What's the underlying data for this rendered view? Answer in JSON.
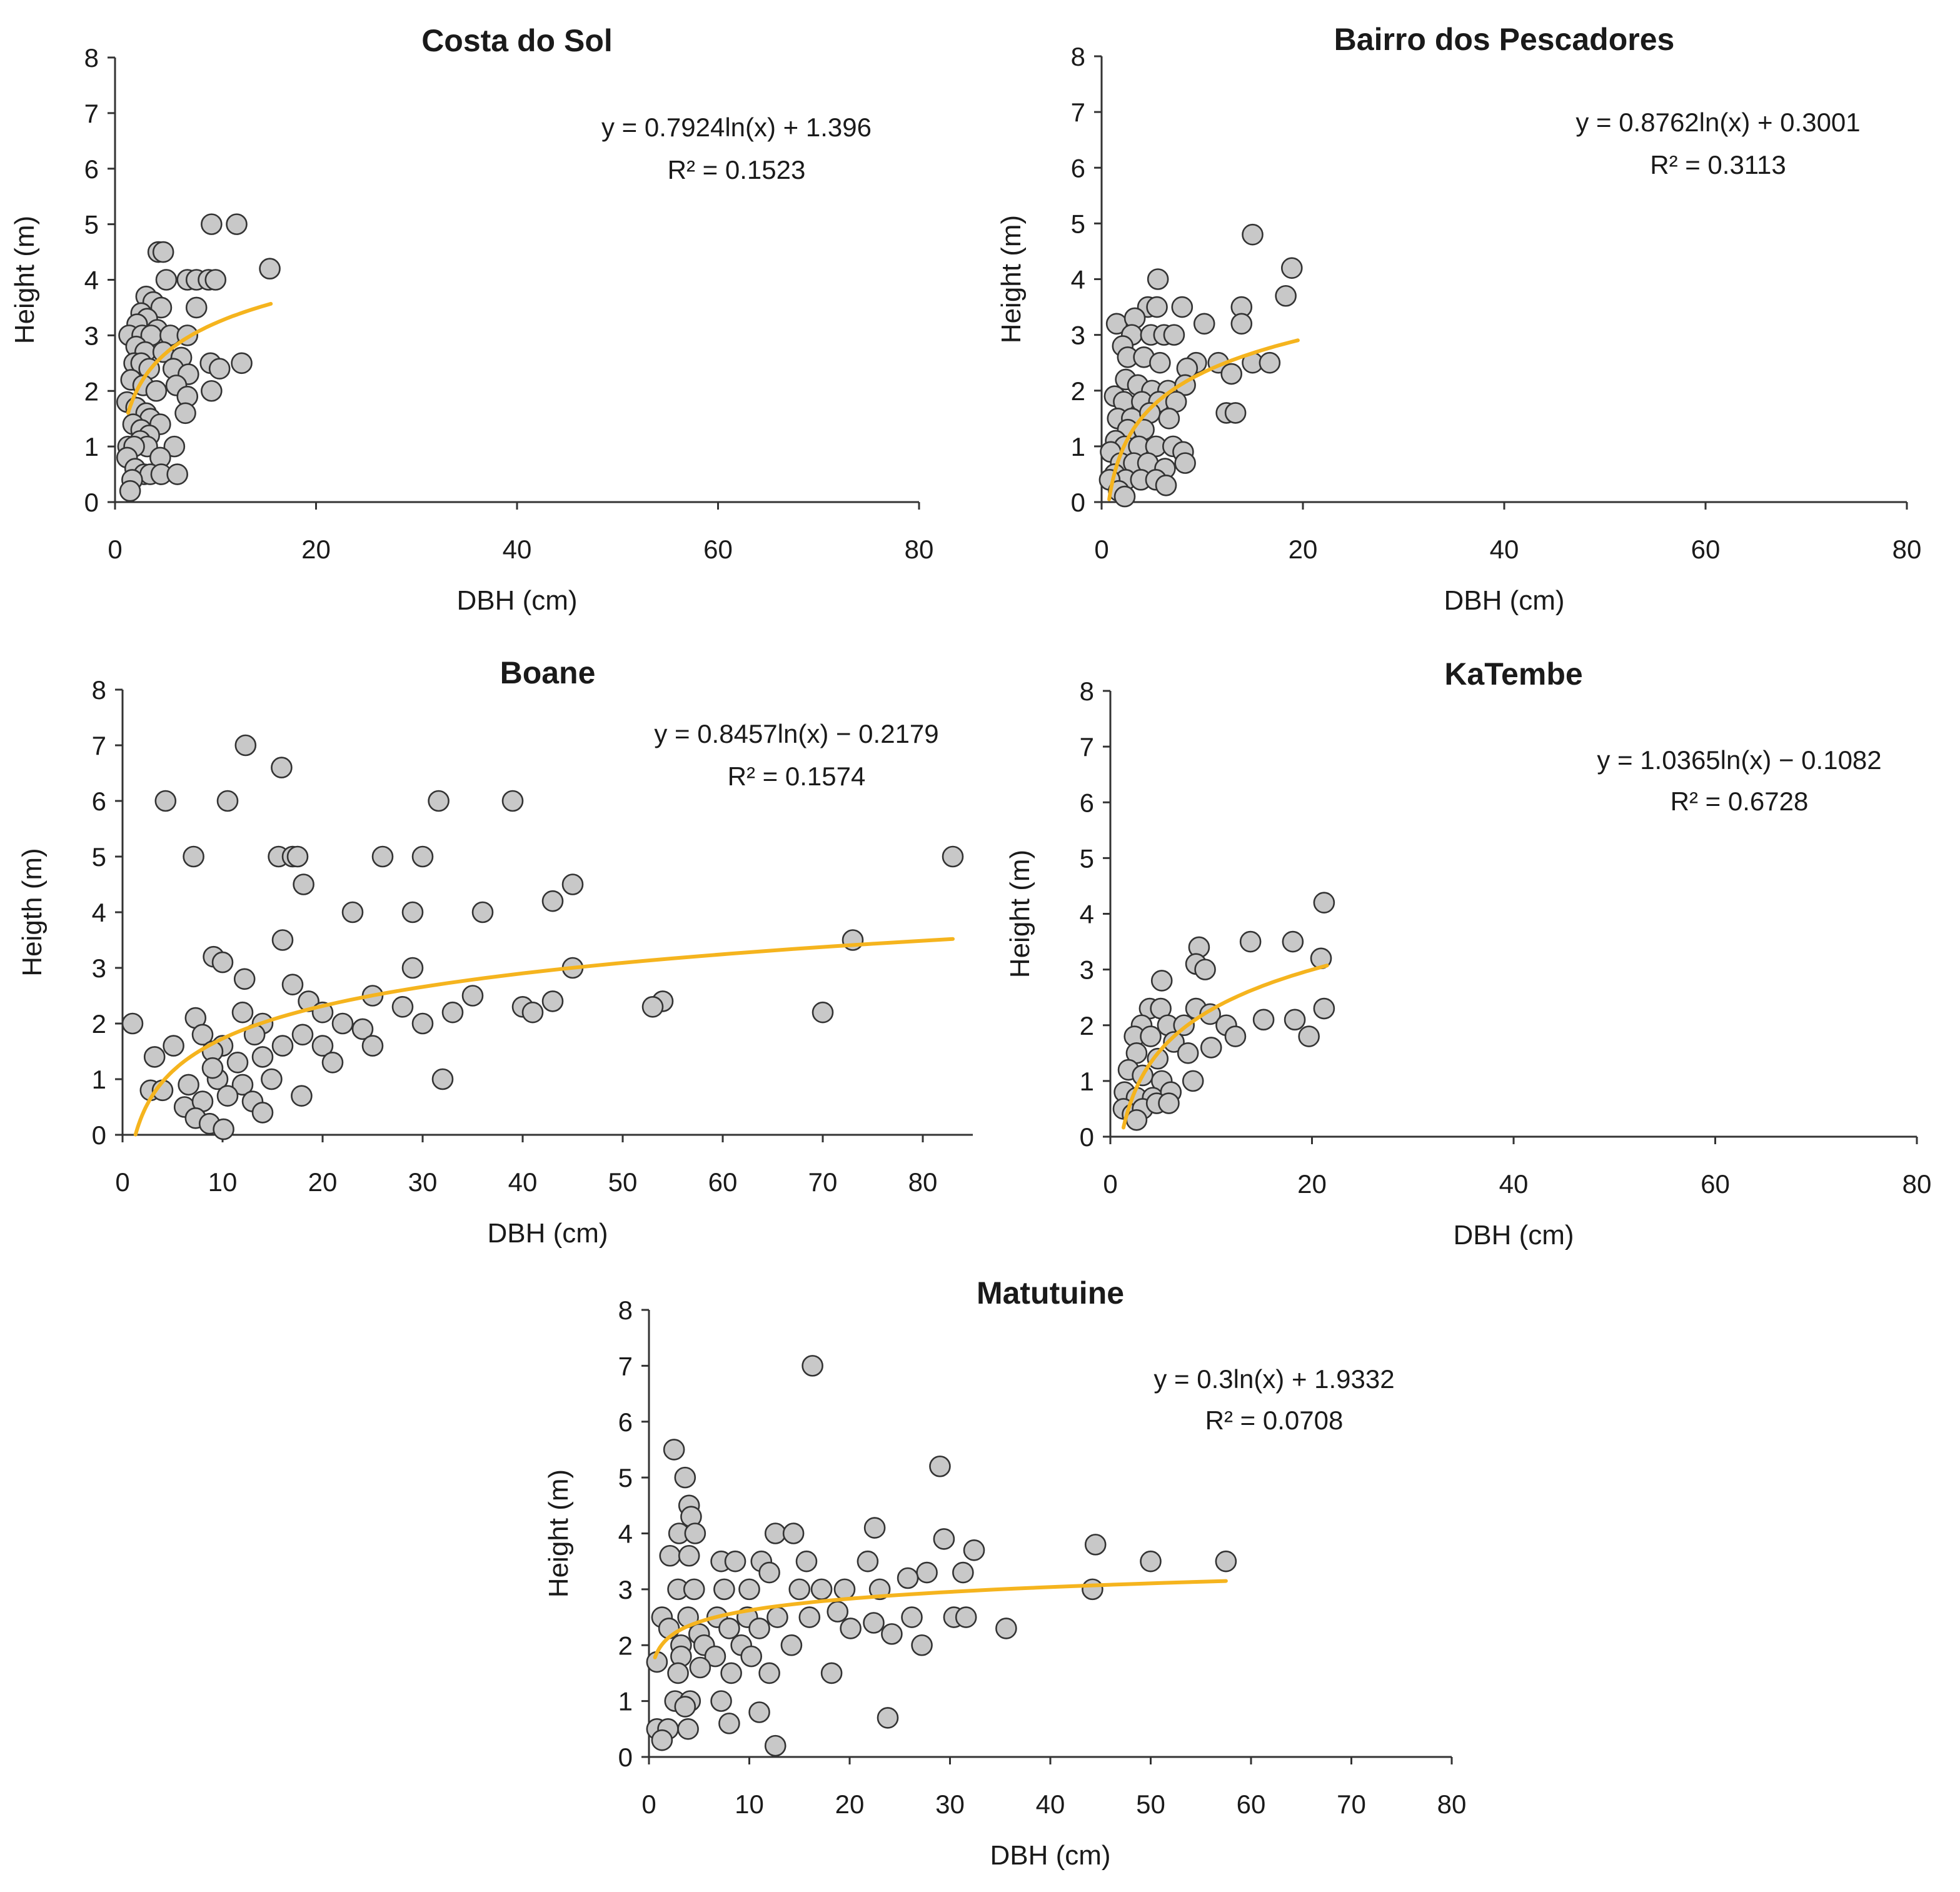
{
  "figure": {
    "marker_fill": "#c8c8c8",
    "marker_edge": "#333333",
    "trend_color": "#f5b41e"
  },
  "chart_data": [
    {
      "type": "scatter",
      "title": "Costa do Sol",
      "xlabel": "DBH (cm)",
      "ylabel": "Height (m)",
      "xlim": [
        0,
        80
      ],
      "ylim": [
        0,
        8
      ],
      "xticks": [
        "0",
        "20",
        "40",
        "60",
        "80"
      ],
      "yticks": [
        "0",
        "1",
        "2",
        "3",
        "4",
        "5",
        "6",
        "7",
        "8"
      ],
      "equation": "y = 0.7924ln(x) + 1.396",
      "r2_label": "R² = 0.1523",
      "trend": {
        "a": 0.7924,
        "b": 1.396,
        "xmin": 1.3,
        "xmax": 15.5
      },
      "points": [
        [
          9.6,
          5
        ],
        [
          12.1,
          5
        ],
        [
          15.4,
          4.2
        ],
        [
          4.3,
          4.5
        ],
        [
          4.8,
          4.5
        ],
        [
          7.2,
          4
        ],
        [
          8.1,
          4
        ],
        [
          9.3,
          4
        ],
        [
          10,
          4
        ],
        [
          5.1,
          4
        ],
        [
          3.1,
          3.7
        ],
        [
          3.8,
          3.6
        ],
        [
          4.6,
          3.5
        ],
        [
          8.1,
          3.5
        ],
        [
          2.6,
          3.4
        ],
        [
          3.2,
          3.3
        ],
        [
          2.2,
          3.2
        ],
        [
          4.2,
          3.1
        ],
        [
          1.4,
          3
        ],
        [
          2.7,
          3
        ],
        [
          3.6,
          3
        ],
        [
          5.5,
          3
        ],
        [
          7.2,
          3
        ],
        [
          2.1,
          2.8
        ],
        [
          3,
          2.7
        ],
        [
          4.8,
          2.7
        ],
        [
          6.6,
          2.6
        ],
        [
          1.9,
          2.5
        ],
        [
          2.6,
          2.5
        ],
        [
          3.4,
          2.4
        ],
        [
          9.5,
          2.5
        ],
        [
          10.4,
          2.4
        ],
        [
          12.6,
          2.5
        ],
        [
          5.8,
          2.4
        ],
        [
          7.3,
          2.3
        ],
        [
          1.6,
          2.2
        ],
        [
          2.8,
          2.1
        ],
        [
          4.1,
          2
        ],
        [
          9.6,
          2
        ],
        [
          6.1,
          2.1
        ],
        [
          7.2,
          1.9
        ],
        [
          1.2,
          1.8
        ],
        [
          2.1,
          1.7
        ],
        [
          3.1,
          1.6
        ],
        [
          3.5,
          1.5
        ],
        [
          4.5,
          1.4
        ],
        [
          7,
          1.6
        ],
        [
          1.8,
          1.4
        ],
        [
          2.6,
          1.3
        ],
        [
          3.4,
          1.2
        ],
        [
          2.5,
          1.1
        ],
        [
          3.2,
          1
        ],
        [
          1.3,
          1
        ],
        [
          1.9,
          1
        ],
        [
          5.9,
          1
        ],
        [
          4.5,
          0.8
        ],
        [
          1.2,
          0.8
        ],
        [
          2,
          0.6
        ],
        [
          2.9,
          0.5
        ],
        [
          3.5,
          0.5
        ],
        [
          4.6,
          0.5
        ],
        [
          6.2,
          0.5
        ],
        [
          1.7,
          0.4
        ],
        [
          1.5,
          0.2
        ]
      ]
    },
    {
      "type": "scatter",
      "title": "Bairro dos Pescadores",
      "xlabel": "DBH (cm)",
      "ylabel": "Height (m)",
      "xlim": [
        0,
        80
      ],
      "ylim": [
        0,
        8
      ],
      "xticks": [
        "0",
        "20",
        "40",
        "60",
        "80"
      ],
      "yticks": [
        "0",
        "1",
        "2",
        "3",
        "4",
        "5",
        "6",
        "7",
        "8"
      ],
      "equation": "y = 0.8762ln(x) + 0.3001",
      "r2_label": "R² = 0.3113",
      "trend": {
        "a": 0.8762,
        "b": 0.3001,
        "xmin": 0.75,
        "xmax": 19.5
      },
      "points": [
        [
          15,
          4.8
        ],
        [
          18.9,
          4.2
        ],
        [
          18.3,
          3.7
        ],
        [
          5.6,
          4
        ],
        [
          4.6,
          3.5
        ],
        [
          5.5,
          3.5
        ],
        [
          8,
          3.5
        ],
        [
          13.9,
          3.5
        ],
        [
          1.5,
          3.2
        ],
        [
          3.3,
          3.3
        ],
        [
          10.2,
          3.2
        ],
        [
          13.9,
          3.2
        ],
        [
          3,
          3
        ],
        [
          4.9,
          3
        ],
        [
          6.2,
          3
        ],
        [
          7.2,
          3
        ],
        [
          2.1,
          2.8
        ],
        [
          2.6,
          2.6
        ],
        [
          4.2,
          2.6
        ],
        [
          5.8,
          2.5
        ],
        [
          9.4,
          2.5
        ],
        [
          11.6,
          2.5
        ],
        [
          15,
          2.5
        ],
        [
          16.7,
          2.5
        ],
        [
          8.5,
          2.4
        ],
        [
          12.9,
          2.3
        ],
        [
          2.4,
          2.2
        ],
        [
          3.6,
          2.1
        ],
        [
          5,
          2
        ],
        [
          6.6,
          2
        ],
        [
          8.3,
          2.1
        ],
        [
          1.3,
          1.9
        ],
        [
          2.2,
          1.8
        ],
        [
          4,
          1.8
        ],
        [
          5.7,
          1.8
        ],
        [
          7.4,
          1.8
        ],
        [
          1.6,
          1.5
        ],
        [
          3,
          1.5
        ],
        [
          4.8,
          1.6
        ],
        [
          6.7,
          1.5
        ],
        [
          12.4,
          1.6
        ],
        [
          13.3,
          1.6
        ],
        [
          2.6,
          1.3
        ],
        [
          4.2,
          1.3
        ],
        [
          1.4,
          1.1
        ],
        [
          2.3,
          1
        ],
        [
          3.7,
          1
        ],
        [
          5.4,
          1
        ],
        [
          7.1,
          1
        ],
        [
          8.1,
          0.9
        ],
        [
          0.9,
          0.9
        ],
        [
          1.9,
          0.7
        ],
        [
          3.2,
          0.7
        ],
        [
          4.6,
          0.7
        ],
        [
          6.3,
          0.6
        ],
        [
          8.3,
          0.7
        ],
        [
          1.3,
          0.5
        ],
        [
          2.4,
          0.4
        ],
        [
          3.9,
          0.4
        ],
        [
          5.4,
          0.4
        ],
        [
          6.4,
          0.3
        ],
        [
          0.8,
          0.4
        ],
        [
          1.7,
          0.2
        ],
        [
          2.3,
          0.1
        ]
      ]
    },
    {
      "type": "scatter",
      "title": "Boane",
      "xlabel": "DBH (cm)",
      "ylabel": "Heigth (m)",
      "xlim": [
        0,
        85
      ],
      "ylim": [
        0,
        8
      ],
      "xticks": [
        "0",
        "10",
        "20",
        "30",
        "40",
        "50",
        "60",
        "70",
        "80"
      ],
      "yticks": [
        "0",
        "1",
        "2",
        "3",
        "4",
        "5",
        "6",
        "7",
        "8"
      ],
      "equation": "y = 0.8457ln(x) − 0.2179",
      "r2_label": "R² = 0.1574",
      "trend": {
        "a": 0.8457,
        "b": -0.2179,
        "xmin": 1.3,
        "xmax": 83
      },
      "points": [
        [
          12.3,
          7
        ],
        [
          15.9,
          6.6
        ],
        [
          4.3,
          6
        ],
        [
          10.5,
          6
        ],
        [
          31.6,
          6
        ],
        [
          39,
          6
        ],
        [
          7.1,
          5
        ],
        [
          15.6,
          5
        ],
        [
          17,
          5
        ],
        [
          17.5,
          5
        ],
        [
          26,
          5
        ],
        [
          30,
          5
        ],
        [
          83,
          5
        ],
        [
          18.1,
          4.5
        ],
        [
          45,
          4.5
        ],
        [
          43,
          4.2
        ],
        [
          23,
          4
        ],
        [
          29,
          4
        ],
        [
          36,
          4
        ],
        [
          16,
          3.5
        ],
        [
          73,
          3.5
        ],
        [
          9.1,
          3.2
        ],
        [
          10,
          3.1
        ],
        [
          29,
          3
        ],
        [
          45,
          3
        ],
        [
          12.2,
          2.8
        ],
        [
          17,
          2.7
        ],
        [
          25,
          2.5
        ],
        [
          35,
          2.5
        ],
        [
          18.6,
          2.4
        ],
        [
          43,
          2.4
        ],
        [
          54,
          2.4
        ],
        [
          28,
          2.3
        ],
        [
          40,
          2.3
        ],
        [
          53,
          2.3
        ],
        [
          70,
          2.2
        ],
        [
          41,
          2.2
        ],
        [
          7.3,
          2.1
        ],
        [
          12,
          2.2
        ],
        [
          20,
          2.2
        ],
        [
          1,
          2
        ],
        [
          14,
          2
        ],
        [
          22,
          2
        ],
        [
          30,
          2
        ],
        [
          8,
          1.8
        ],
        [
          13.2,
          1.8
        ],
        [
          18,
          1.8
        ],
        [
          24,
          1.9
        ],
        [
          33,
          2.2
        ],
        [
          5.1,
          1.6
        ],
        [
          10,
          1.6
        ],
        [
          16,
          1.6
        ],
        [
          20,
          1.6
        ],
        [
          25,
          1.6
        ],
        [
          3.2,
          1.4
        ],
        [
          9,
          1.5
        ],
        [
          14,
          1.4
        ],
        [
          21,
          1.3
        ],
        [
          2.8,
          0.8
        ],
        [
          6.6,
          0.9
        ],
        [
          9.5,
          1
        ],
        [
          12,
          0.9
        ],
        [
          14.9,
          1
        ],
        [
          32,
          1
        ],
        [
          4,
          0.8
        ],
        [
          6.2,
          0.5
        ],
        [
          8,
          0.6
        ],
        [
          10.5,
          0.7
        ],
        [
          13,
          0.6
        ],
        [
          14,
          0.4
        ],
        [
          17.9,
          0.7
        ],
        [
          7.3,
          0.3
        ],
        [
          8.7,
          0.2
        ],
        [
          10.1,
          0.1
        ],
        [
          9,
          1.2
        ],
        [
          11.5,
          1.3
        ]
      ]
    },
    {
      "type": "scatter",
      "title": "KaTembe",
      "xlabel": "DBH (cm)",
      "ylabel": "Height (m)",
      "xlim": [
        0,
        80
      ],
      "ylim": [
        0,
        8
      ],
      "xticks": [
        "0",
        "20",
        "40",
        "60",
        "80"
      ],
      "yticks": [
        "0",
        "1",
        "2",
        "3",
        "4",
        "5",
        "6",
        "7",
        "8"
      ],
      "equation": "y = 1.0365ln(x) − 0.1082",
      "r2_label": "R² = 0.6728",
      "trend": {
        "a": 1.0365,
        "b": -0.1082,
        "xmin": 1.3,
        "xmax": 21.5
      },
      "points": [
        [
          21.2,
          4.2
        ],
        [
          8.8,
          3.4
        ],
        [
          13.9,
          3.5
        ],
        [
          18.1,
          3.5
        ],
        [
          20.9,
          3.2
        ],
        [
          8.5,
          3.1
        ],
        [
          9.4,
          3
        ],
        [
          5.1,
          2.8
        ],
        [
          3.9,
          2.3
        ],
        [
          5,
          2.3
        ],
        [
          8.5,
          2.3
        ],
        [
          9.9,
          2.2
        ],
        [
          21.2,
          2.3
        ],
        [
          3.1,
          2
        ],
        [
          5.7,
          2
        ],
        [
          7.3,
          2
        ],
        [
          11.5,
          2
        ],
        [
          15.2,
          2.1
        ],
        [
          18.3,
          2.1
        ],
        [
          2.4,
          1.8
        ],
        [
          4,
          1.8
        ],
        [
          6.3,
          1.7
        ],
        [
          12.4,
          1.8
        ],
        [
          19.7,
          1.8
        ],
        [
          2.6,
          1.5
        ],
        [
          4.7,
          1.4
        ],
        [
          7.7,
          1.5
        ],
        [
          10,
          1.6
        ],
        [
          1.8,
          1.2
        ],
        [
          3.2,
          1.1
        ],
        [
          5.1,
          1
        ],
        [
          8.2,
          1
        ],
        [
          1.4,
          0.8
        ],
        [
          2.6,
          0.7
        ],
        [
          4.2,
          0.7
        ],
        [
          6,
          0.8
        ],
        [
          1.3,
          0.5
        ],
        [
          2.2,
          0.4
        ],
        [
          3.2,
          0.5
        ],
        [
          4.6,
          0.6
        ],
        [
          5.8,
          0.6
        ],
        [
          2.6,
          0.3
        ]
      ]
    },
    {
      "type": "scatter",
      "title": "Matutuine",
      "xlabel": "DBH (cm)",
      "ylabel": "Height (m)",
      "xlim": [
        0,
        80
      ],
      "ylim": [
        0,
        8
      ],
      "xticks": [
        "0",
        "10",
        "20",
        "30",
        "40",
        "50",
        "60",
        "70",
        "80"
      ],
      "yticks": [
        "0",
        "1",
        "2",
        "3",
        "4",
        "5",
        "6",
        "7",
        "8"
      ],
      "equation": "y = 0.3ln(x) + 1.9332",
      "r2_label": "R² = 0.0708",
      "trend": {
        "a": 0.3,
        "b": 1.9332,
        "xmin": 0.6,
        "xmax": 57.5
      },
      "points": [
        [
          16.3,
          7
        ],
        [
          2.5,
          5.5
        ],
        [
          29,
          5.2
        ],
        [
          3.6,
          5
        ],
        [
          4,
          4.5
        ],
        [
          4.2,
          4.3
        ],
        [
          3,
          4
        ],
        [
          4.6,
          4
        ],
        [
          12.6,
          4
        ],
        [
          14.4,
          4
        ],
        [
          22.5,
          4.1
        ],
        [
          44.5,
          3.8
        ],
        [
          29.4,
          3.9
        ],
        [
          32.4,
          3.7
        ],
        [
          2.1,
          3.6
        ],
        [
          4,
          3.6
        ],
        [
          7.2,
          3.5
        ],
        [
          8.6,
          3.5
        ],
        [
          11.2,
          3.5
        ],
        [
          15.7,
          3.5
        ],
        [
          21.8,
          3.5
        ],
        [
          50,
          3.5
        ],
        [
          57.5,
          3.5
        ],
        [
          12,
          3.3
        ],
        [
          27.7,
          3.3
        ],
        [
          31.3,
          3.3
        ],
        [
          25.8,
          3.2
        ],
        [
          2.9,
          3
        ],
        [
          4.5,
          3
        ],
        [
          7.5,
          3
        ],
        [
          10,
          3
        ],
        [
          15,
          3
        ],
        [
          17.2,
          3
        ],
        [
          19.5,
          3
        ],
        [
          23,
          3
        ],
        [
          44.2,
          3
        ],
        [
          1.3,
          2.5
        ],
        [
          3.9,
          2.5
        ],
        [
          6.8,
          2.5
        ],
        [
          9.8,
          2.5
        ],
        [
          12.8,
          2.5
        ],
        [
          16,
          2.5
        ],
        [
          18.8,
          2.6
        ],
        [
          26.2,
          2.5
        ],
        [
          30.4,
          2.5
        ],
        [
          31.6,
          2.5
        ],
        [
          35.6,
          2.3
        ],
        [
          2,
          2.3
        ],
        [
          5,
          2.2
        ],
        [
          8,
          2.3
        ],
        [
          11,
          2.3
        ],
        [
          20.1,
          2.3
        ],
        [
          22.4,
          2.4
        ],
        [
          24.2,
          2.2
        ],
        [
          27.2,
          2
        ],
        [
          3.2,
          2
        ],
        [
          5.5,
          2
        ],
        [
          9.2,
          2
        ],
        [
          14.2,
          2
        ],
        [
          0.8,
          1.7
        ],
        [
          3.2,
          1.8
        ],
        [
          6.6,
          1.8
        ],
        [
          10.2,
          1.8
        ],
        [
          2.9,
          1.5
        ],
        [
          5.1,
          1.6
        ],
        [
          8.2,
          1.5
        ],
        [
          12,
          1.5
        ],
        [
          18.2,
          1.5
        ],
        [
          2.6,
          1
        ],
        [
          4.1,
          1
        ],
        [
          7.2,
          1
        ],
        [
          11,
          0.8
        ],
        [
          3.6,
          0.9
        ],
        [
          8,
          0.6
        ],
        [
          23.8,
          0.7
        ],
        [
          0.8,
          0.5
        ],
        [
          1.9,
          0.5
        ],
        [
          3.9,
          0.5
        ],
        [
          1.3,
          0.3
        ],
        [
          12.6,
          0.2
        ]
      ]
    }
  ]
}
